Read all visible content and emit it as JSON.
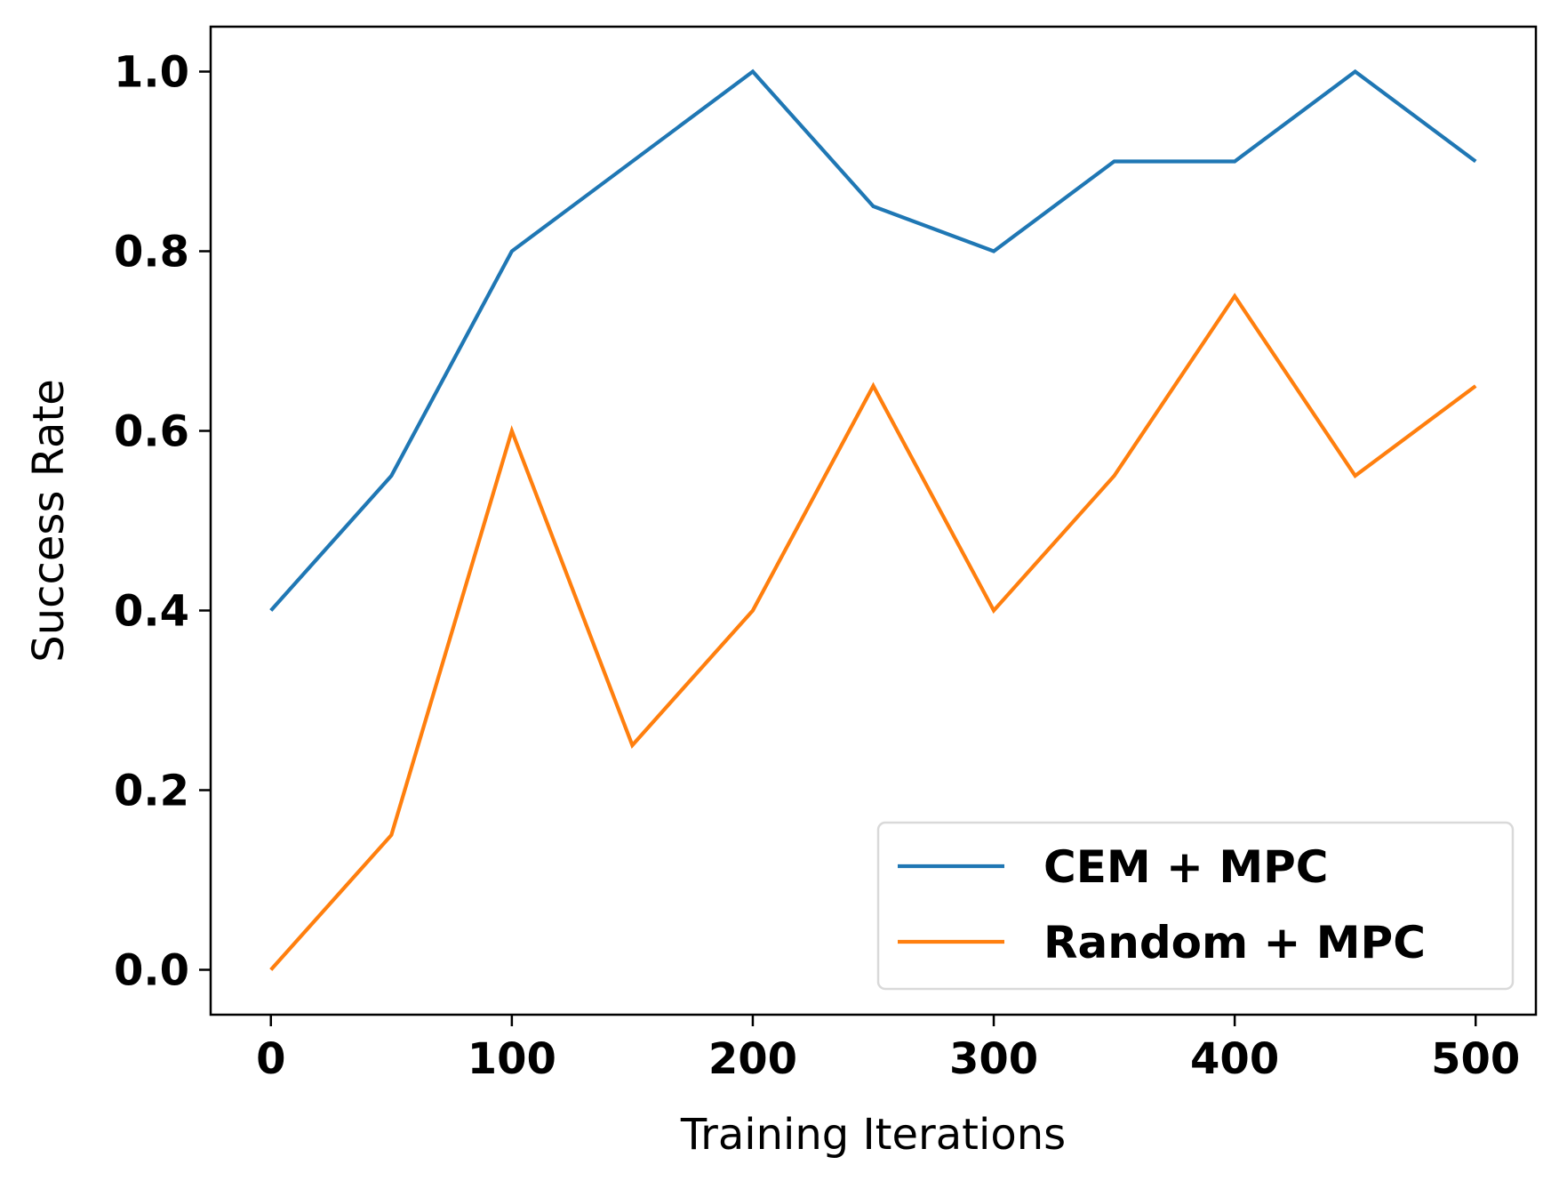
{
  "chart_data": {
    "type": "line",
    "title": "",
    "xlabel": "Training Iterations",
    "ylabel": "Success Rate",
    "x": [
      0,
      50,
      100,
      150,
      200,
      250,
      300,
      350,
      400,
      450,
      500
    ],
    "series": [
      {
        "name": "CEM + MPC",
        "color": "#1f77b4",
        "values": [
          0.4,
          0.55,
          0.8,
          0.9,
          1.0,
          0.85,
          0.8,
          0.9,
          0.9,
          1.0,
          0.9
        ]
      },
      {
        "name": "Random + MPC",
        "color": "#ff7f0e",
        "values": [
          0.0,
          0.15,
          0.6,
          0.25,
          0.4,
          0.65,
          0.4,
          0.55,
          0.75,
          0.55,
          0.65
        ]
      }
    ],
    "xlim": [
      -25,
      525
    ],
    "ylim": [
      -0.05,
      1.05
    ],
    "xticks": [
      0,
      100,
      200,
      300,
      400,
      500
    ],
    "xtick_labels": [
      "0",
      "100",
      "200",
      "300",
      "400",
      "500"
    ],
    "yticks": [
      0.0,
      0.2,
      0.4,
      0.6,
      0.8,
      1.0
    ],
    "ytick_labels": [
      "0.0",
      "0.2",
      "0.4",
      "0.6",
      "0.8",
      "1.0"
    ],
    "grid": false,
    "legend_position": "lower-right"
  }
}
